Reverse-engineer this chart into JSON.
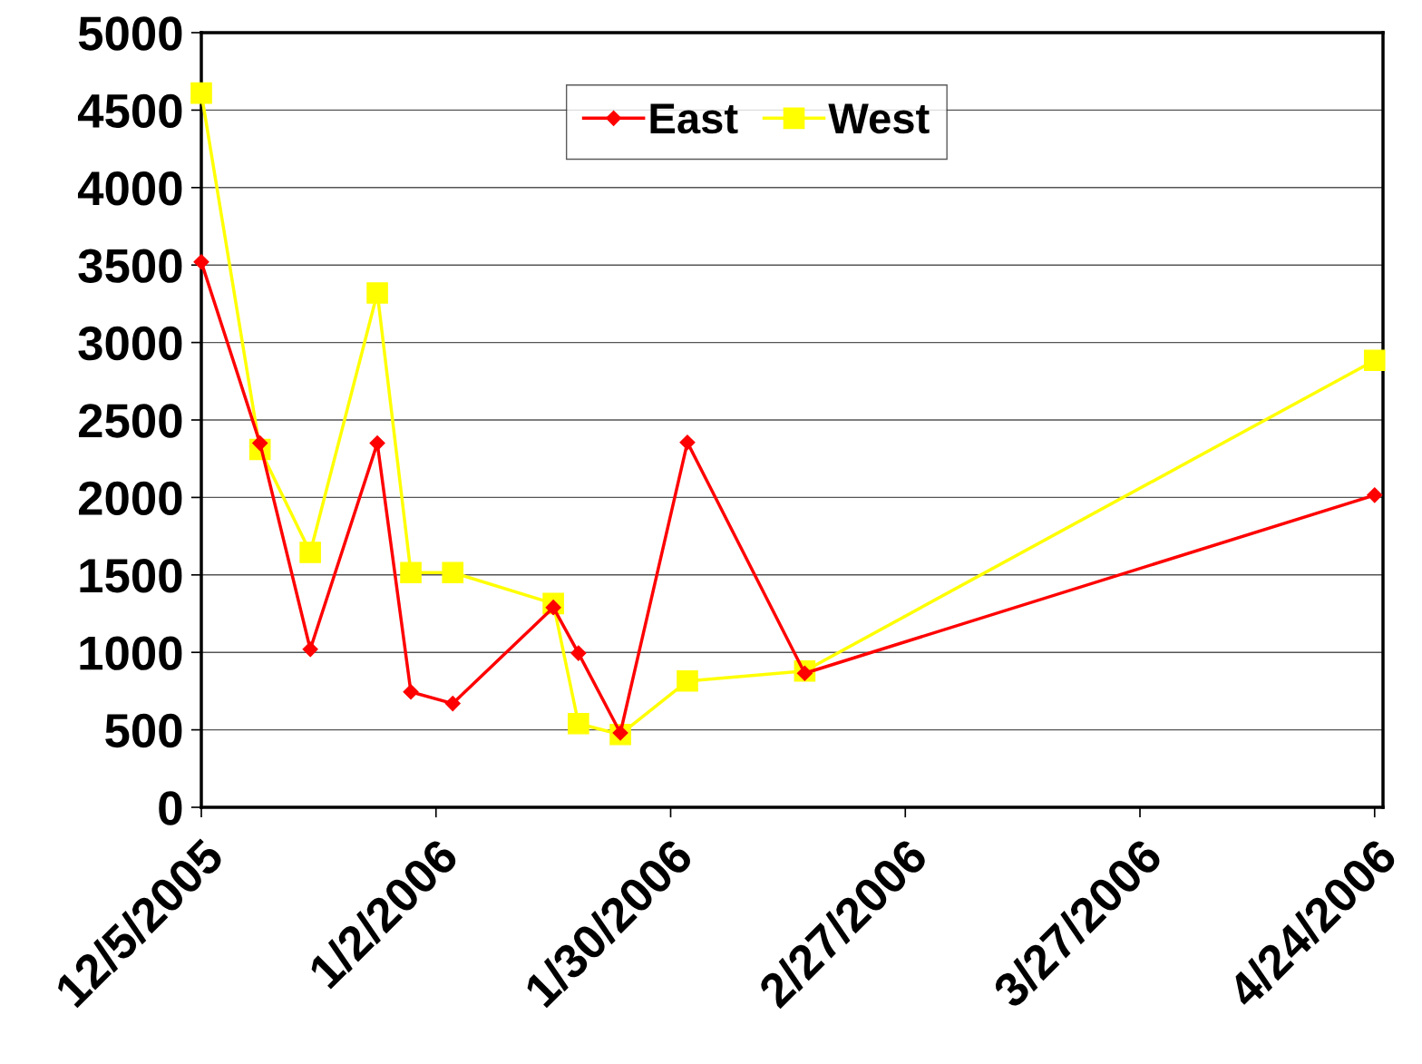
{
  "chart_data": {
    "type": "line",
    "x": [
      "2005-12-05",
      "2005-12-12",
      "2005-12-18",
      "2005-12-26",
      "2005-12-30",
      "2006-01-04",
      "2006-01-16",
      "2006-01-19",
      "2006-01-24",
      "2006-02-01",
      "2006-02-15",
      "2006-04-24"
    ],
    "series": [
      {
        "name": "East",
        "color": "#ff0000",
        "marker": "diamond",
        "values": [
          3520,
          2350,
          1020,
          2350,
          745,
          670,
          1290,
          995,
          480,
          2355,
          865,
          2015
        ]
      },
      {
        "name": "West",
        "color": "#ffff00",
        "marker": "square",
        "values": [
          4610,
          2310,
          1645,
          3320,
          1515,
          1515,
          1315,
          540,
          470,
          815,
          880,
          2885
        ]
      }
    ],
    "xlim": [
      "2005-12-05",
      "2006-04-25"
    ],
    "xticks": [
      {
        "value": "2005-12-05",
        "label": "12/5/2005"
      },
      {
        "value": "2006-01-02",
        "label": "1/2/2006"
      },
      {
        "value": "2006-01-30",
        "label": "1/30/2006"
      },
      {
        "value": "2006-02-27",
        "label": "2/27/2006"
      },
      {
        "value": "2006-03-27",
        "label": "3/27/2006"
      },
      {
        "value": "2006-04-24",
        "label": "4/24/2006"
      }
    ],
    "ylim": [
      0,
      5000
    ],
    "yticks": [
      0,
      500,
      1000,
      1500,
      2000,
      2500,
      3000,
      3500,
      4000,
      4500,
      5000
    ],
    "grid": "y",
    "legend": "top",
    "line_style": "solid"
  }
}
